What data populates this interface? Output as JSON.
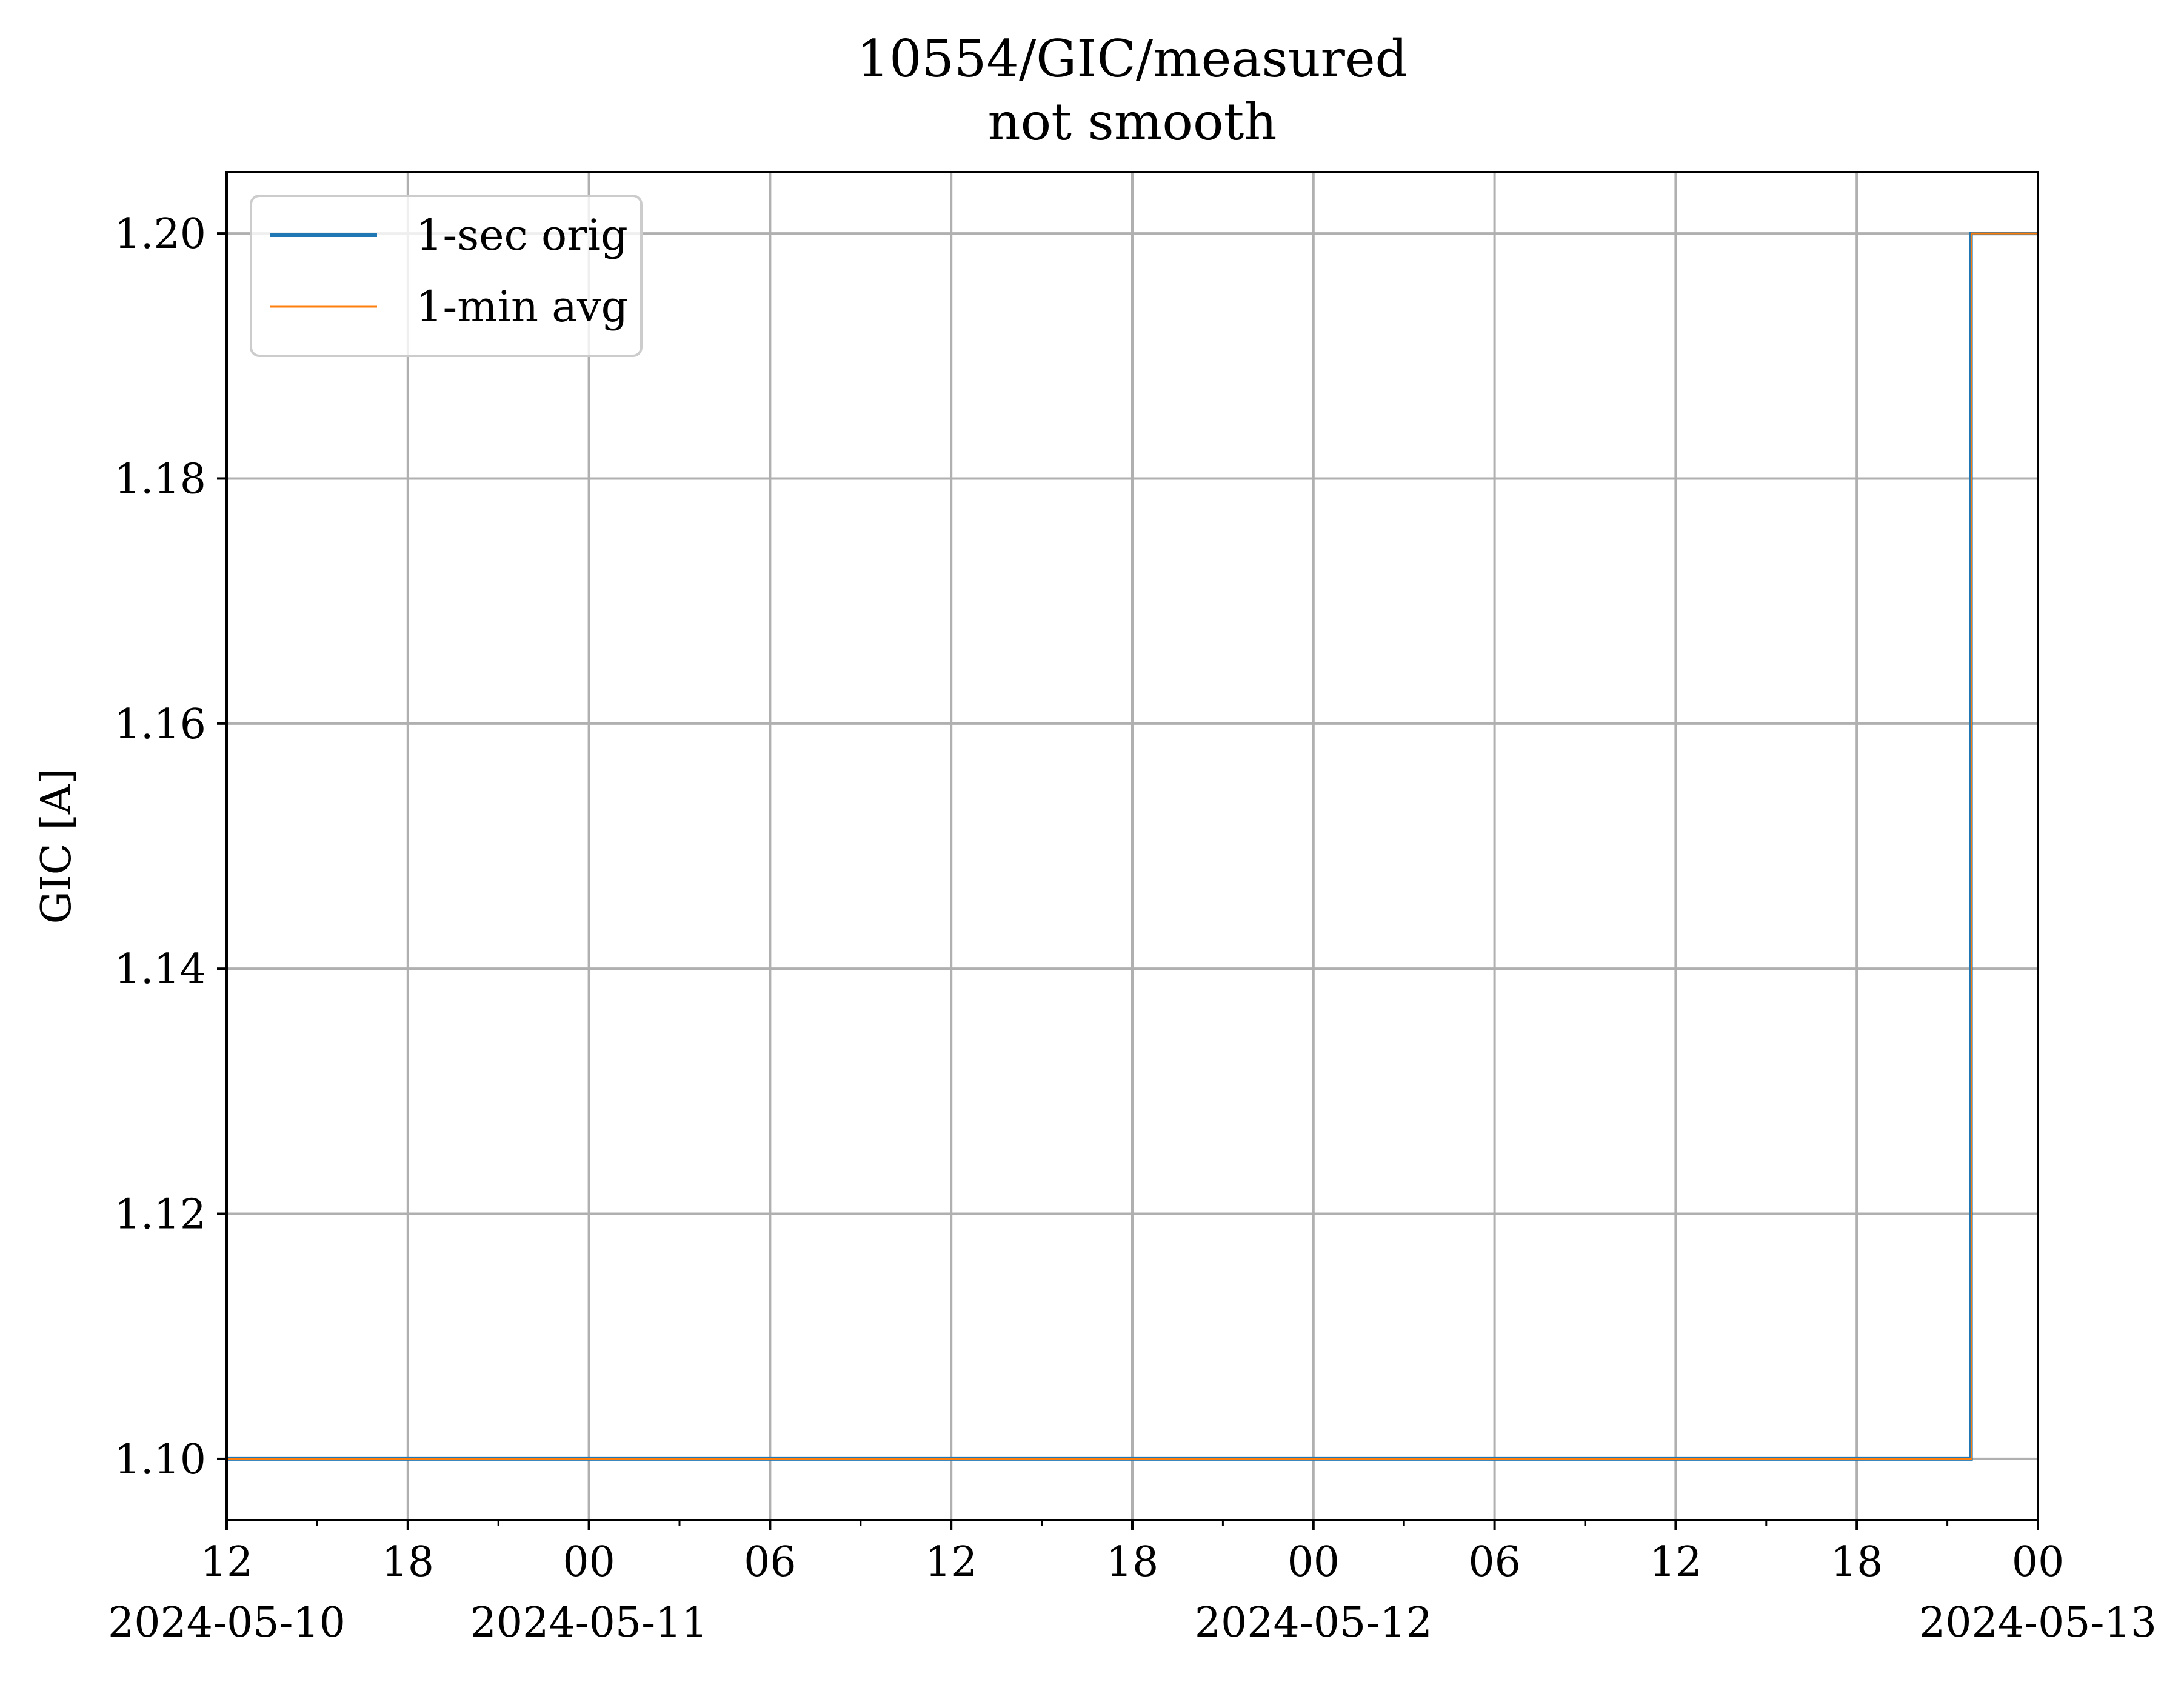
{
  "chart_data": {
    "type": "line",
    "title": "10554/GIC/measured",
    "subtitle": "not smooth",
    "xlabel": "",
    "ylabel": "GIC [A]",
    "x_range": [
      "2024-05-10 12:00",
      "2024-05-13 00:00"
    ],
    "ylim": [
      1.095,
      1.205
    ],
    "y_ticks": [
      1.1,
      1.12,
      1.14,
      1.16,
      1.18,
      1.2
    ],
    "y_tick_labels": [
      "1.10",
      "1.12",
      "1.14",
      "1.16",
      "1.18",
      "1.20"
    ],
    "x_ticks": [
      {
        "t": "2024-05-10 12:00",
        "label": "12",
        "date_label": "2024-05-10"
      },
      {
        "t": "2024-05-10 18:00",
        "label": "18",
        "date_label": ""
      },
      {
        "t": "2024-05-11 00:00",
        "label": "00",
        "date_label": "2024-05-11"
      },
      {
        "t": "2024-05-11 06:00",
        "label": "06",
        "date_label": ""
      },
      {
        "t": "2024-05-11 12:00",
        "label": "12",
        "date_label": ""
      },
      {
        "t": "2024-05-11 18:00",
        "label": "18",
        "date_label": ""
      },
      {
        "t": "2024-05-12 00:00",
        "label": "00",
        "date_label": "2024-05-12"
      },
      {
        "t": "2024-05-12 06:00",
        "label": "06",
        "date_label": ""
      },
      {
        "t": "2024-05-12 12:00",
        "label": "12",
        "date_label": ""
      },
      {
        "t": "2024-05-12 18:00",
        "label": "18",
        "date_label": ""
      },
      {
        "t": "2024-05-13 00:00",
        "label": "00",
        "date_label": "2024-05-13"
      }
    ],
    "grid": true,
    "legend_position": "top-left",
    "series": [
      {
        "name": "1-sec orig",
        "color": "#1f77b4",
        "points": [
          {
            "t": "2024-05-10 12:00",
            "y": 1.1
          },
          {
            "t": "2024-05-12 21:47",
            "y": 1.1
          },
          {
            "t": "2024-05-12 21:47",
            "y": 1.2
          },
          {
            "t": "2024-05-13 00:00",
            "y": 1.2
          }
        ]
      },
      {
        "name": "1-min avg",
        "color": "#ff7f0e",
        "points": [
          {
            "t": "2024-05-10 12:00",
            "y": 1.1
          },
          {
            "t": "2024-05-12 21:48",
            "y": 1.1
          },
          {
            "t": "2024-05-12 21:48",
            "y": 1.2
          },
          {
            "t": "2024-05-13 00:00",
            "y": 1.2
          }
        ]
      }
    ]
  }
}
